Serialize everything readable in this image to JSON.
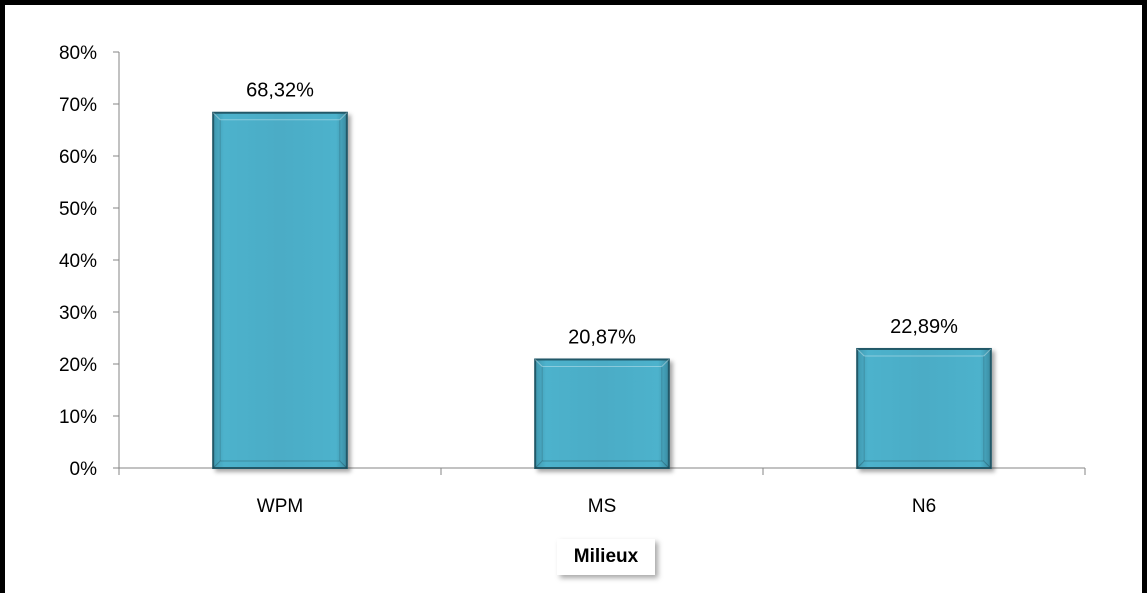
{
  "chart_data": {
    "type": "bar",
    "categories": [
      "WPM",
      "MS",
      "N6"
    ],
    "values": [
      68.32,
      20.87,
      22.89
    ],
    "data_labels": [
      "68,32%",
      "20,87%",
      "22,89%"
    ],
    "yticks": [
      "0%",
      "10%",
      "20%",
      "30%",
      "40%",
      "50%",
      "60%",
      "70%",
      "80%"
    ],
    "ylim": [
      0,
      80
    ],
    "xlabel": "Milieux",
    "ylabel": "",
    "title": "",
    "grid": false,
    "legend": "none",
    "colors": {
      "bar": "#4BACC6",
      "bar_edge": "#215968",
      "axis": "#868686"
    }
  }
}
